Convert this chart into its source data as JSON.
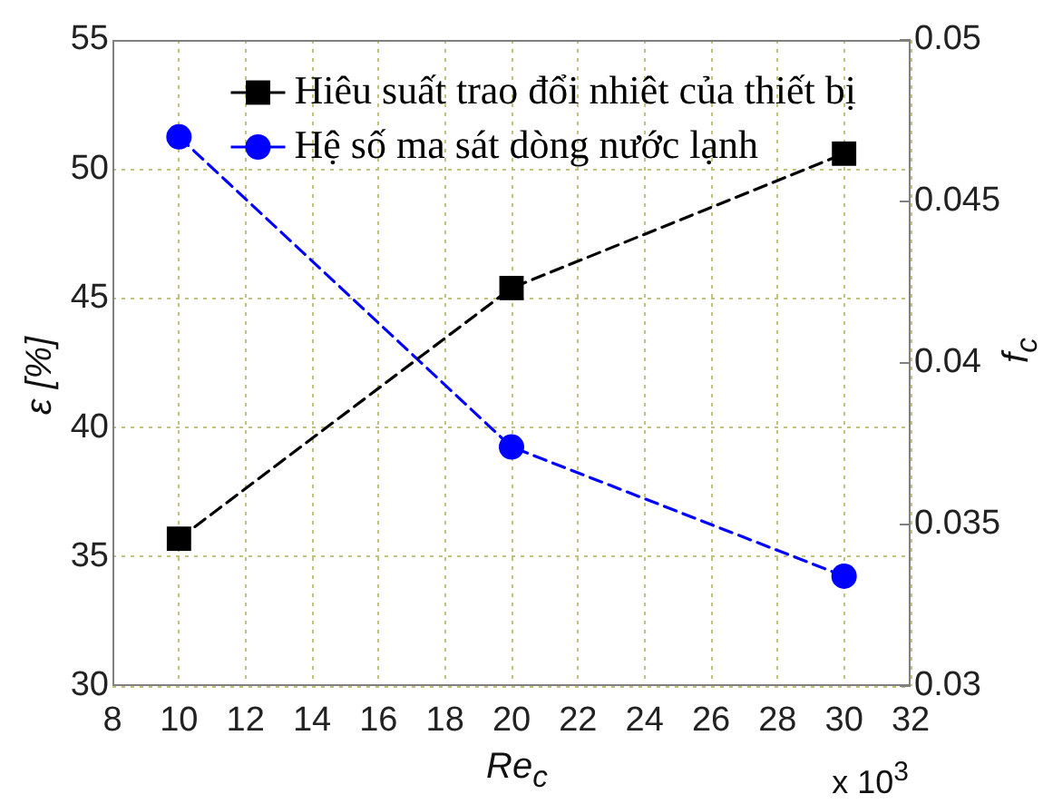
{
  "chart_data": {
    "type": "line",
    "xlabel": "Re$_{c}$",
    "ylabel": "ε [%]",
    "y2label": "f$_{c}$",
    "x": [
      10,
      20,
      30
    ],
    "xlim": [
      8,
      32
    ],
    "xticks": [
      8,
      10,
      12,
      14,
      16,
      18,
      20,
      22,
      24,
      26,
      28,
      30,
      32
    ],
    "ylim": [
      30,
      55
    ],
    "yticks": [
      30,
      35,
      40,
      45,
      50,
      55
    ],
    "y2lim": [
      0.03,
      0.05
    ],
    "y2ticks": [
      0.03,
      0.035,
      0.04,
      0.045,
      0.05
    ],
    "series": [
      {
        "name": "Hiêu suất trao đổi nhiêt của thiết bị",
        "color": "#000000",
        "marker": "square",
        "values": [
          35.7,
          45.4,
          50.6
        ]
      },
      {
        "name": "Hệ số ma sát dòng nước lạnh",
        "color": "#0000ff",
        "marker": "circle",
        "axis": "y2",
        "values": [
          0.047,
          0.0374,
          0.0334
        ]
      }
    ],
    "line_style": "dashed",
    "grid": true,
    "legend": "top right",
    "annotations": [
      "x 10$^{3}$"
    ]
  }
}
